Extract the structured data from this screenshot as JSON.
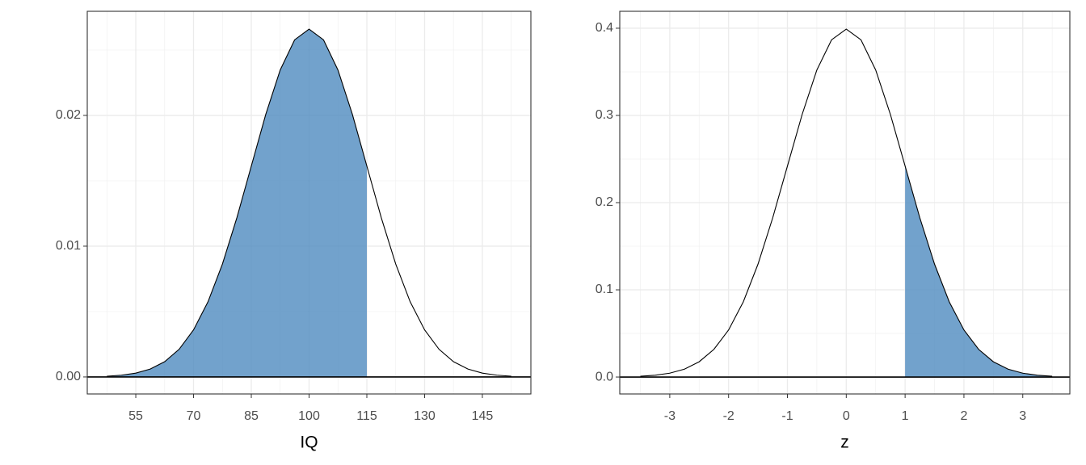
{
  "chart_data": [
    {
      "type": "area",
      "xlabel": "IQ",
      "xlim": [
        42.4,
        157.6
      ],
      "ylim": [
        -0.0013,
        0.02796
      ],
      "xticks": [
        55,
        70,
        85,
        100,
        115,
        130,
        145
      ],
      "yticks": [
        {
          "value": 0,
          "label": "0.00"
        },
        0.01,
        0.02
      ],
      "xminor": [
        47.5,
        62.5,
        77.5,
        92.5,
        107.5,
        122.5,
        137.5,
        152.5
      ],
      "yminor": [
        0.005,
        0.015,
        0.025
      ],
      "grid": true,
      "series": [
        {
          "color": "#000000",
          "fill": false,
          "x": [
            47.5,
            51.25,
            55,
            58.75,
            62.5,
            66.25,
            70,
            73.75,
            77.5,
            81.25,
            85,
            88.75,
            92.5,
            96.25,
            100,
            103.75,
            107.5,
            111.25,
            115,
            118.75,
            122.5,
            126.25,
            130,
            133.75,
            137.5,
            141.25,
            145,
            148.75,
            152.5
          ],
          "values": [
            5.8e-05,
            0.000135,
            0.000295,
            0.000606,
            0.001169,
            0.002116,
            0.003599,
            0.005752,
            0.008635,
            0.012177,
            0.016131,
            0.020076,
            0.023471,
            0.025778,
            0.026596,
            0.025778,
            0.023471,
            0.020076,
            0.016131,
            0.012177,
            0.008635,
            0.005752,
            0.003599,
            0.002116,
            0.001169,
            0.000606,
            0.000295,
            0.000135,
            5.8e-05
          ]
        },
        {
          "color": "#4f8bbf",
          "fill": true,
          "x": [
            47.5,
            51.25,
            55,
            58.75,
            62.5,
            66.25,
            70,
            73.75,
            77.5,
            81.25,
            85,
            88.75,
            92.5,
            96.25,
            100,
            103.75,
            107.5,
            111.25,
            115
          ],
          "values": [
            5.8e-05,
            0.000135,
            0.000295,
            0.000606,
            0.001169,
            0.002116,
            0.003599,
            0.005752,
            0.008635,
            0.012177,
            0.016131,
            0.020076,
            0.023471,
            0.025778,
            0.026596,
            0.025778,
            0.023471,
            0.020076,
            0.016131
          ]
        }
      ]
    },
    {
      "type": "area",
      "xlabel": "z",
      "xlim": [
        -3.85,
        3.8
      ],
      "ylim": [
        -0.0194,
        0.4194
      ],
      "xticks": [
        -3,
        -2,
        -1,
        0,
        1,
        2,
        3
      ],
      "yticks": [
        {
          "value": 0,
          "label": "0.0"
        },
        0.1,
        0.2,
        0.3,
        0.4
      ],
      "xminor": [
        -3.5,
        -2.5,
        -1.5,
        -0.5,
        0.5,
        1.5,
        2.5,
        3.5
      ],
      "yminor": [
        0.05,
        0.15,
        0.25,
        0.35
      ],
      "grid": true,
      "series": [
        {
          "color": "#000000",
          "fill": false,
          "x": [
            -3.5,
            -3.25,
            -3,
            -2.75,
            -2.5,
            -2.25,
            -2,
            -1.75,
            -1.5,
            -1.25,
            -1,
            -0.75,
            -0.5,
            -0.25,
            0,
            0.25,
            0.5,
            0.75,
            1,
            1.25,
            1.5,
            1.75,
            2,
            2.25,
            2.5,
            2.75,
            3,
            3.25,
            3.5
          ],
          "values": [
            0.00087,
            0.00203,
            0.00443,
            0.00909,
            0.01753,
            0.03174,
            0.05399,
            0.08628,
            0.12952,
            0.18265,
            0.24197,
            0.30114,
            0.35207,
            0.38667,
            0.39894,
            0.38667,
            0.35207,
            0.30114,
            0.24197,
            0.18265,
            0.12952,
            0.08628,
            0.05399,
            0.03174,
            0.01753,
            0.00909,
            0.00443,
            0.00203,
            0.00087
          ]
        },
        {
          "color": "#4f8bbf",
          "fill": true,
          "x": [
            1,
            1.25,
            1.5,
            1.75,
            2,
            2.25,
            2.5,
            2.75,
            3,
            3.25,
            3.5
          ],
          "values": [
            0.24197,
            0.18265,
            0.12952,
            0.08628,
            0.05399,
            0.03174,
            0.01753,
            0.00909,
            0.00443,
            0.00203,
            0.00087
          ]
        }
      ]
    }
  ]
}
